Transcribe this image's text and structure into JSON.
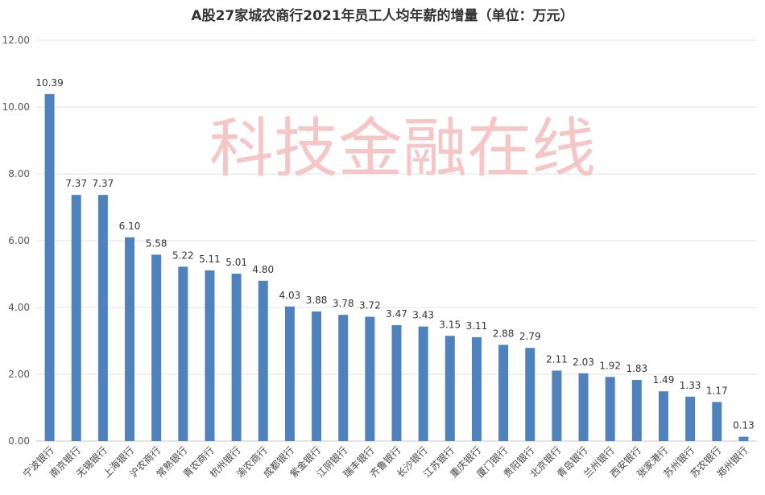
{
  "chart_data": {
    "type": "bar",
    "title": "A股27家城农商行2021年员工人均年薪的增量（单位：万元）",
    "watermark": "科技金融在线",
    "categories": [
      "宁波银行",
      "南京银行",
      "无锡银行",
      "上海银行",
      "沪农商行",
      "常熟银行",
      "青农商行",
      "杭州银行",
      "渝农商行",
      "成都银行",
      "紫金银行",
      "江阴银行",
      "瑞丰银行",
      "齐鲁银行",
      "长沙银行",
      "江苏银行",
      "重庆银行",
      "厦门银行",
      "贵阳银行",
      "北京银行",
      "青岛银行",
      "兰州银行",
      "西安银行",
      "张家港行",
      "苏州银行",
      "苏农银行",
      "郑州银行"
    ],
    "values": [
      10.39,
      7.37,
      7.37,
      6.1,
      5.58,
      5.22,
      5.11,
      5.01,
      4.8,
      4.03,
      3.88,
      3.78,
      3.72,
      3.47,
      3.43,
      3.15,
      3.11,
      2.88,
      2.79,
      2.11,
      2.03,
      1.92,
      1.83,
      1.49,
      1.33,
      1.17,
      0.13
    ],
    "data_labels": [
      "10.39",
      "7.37",
      "7.37",
      "6.10",
      "5.58",
      "5.22",
      "5.11",
      "5.01",
      "4.80",
      "4.03",
      "3.88",
      "3.78",
      "3.72",
      "3.47",
      "3.43",
      "3.15",
      "3.11",
      "2.88",
      "2.79",
      "2.11",
      "2.03",
      "1.92",
      "1.83",
      "1.49",
      "1.33",
      "1.17",
      "0.13"
    ],
    "yticks": [
      "0.00",
      "2.00",
      "4.00",
      "6.00",
      "8.00",
      "10.00",
      "12.00"
    ],
    "ylim": [
      0,
      12
    ],
    "xlabel": "",
    "ylabel": "",
    "grid": true,
    "legend": "none",
    "bar_color": "#4f81bd"
  }
}
